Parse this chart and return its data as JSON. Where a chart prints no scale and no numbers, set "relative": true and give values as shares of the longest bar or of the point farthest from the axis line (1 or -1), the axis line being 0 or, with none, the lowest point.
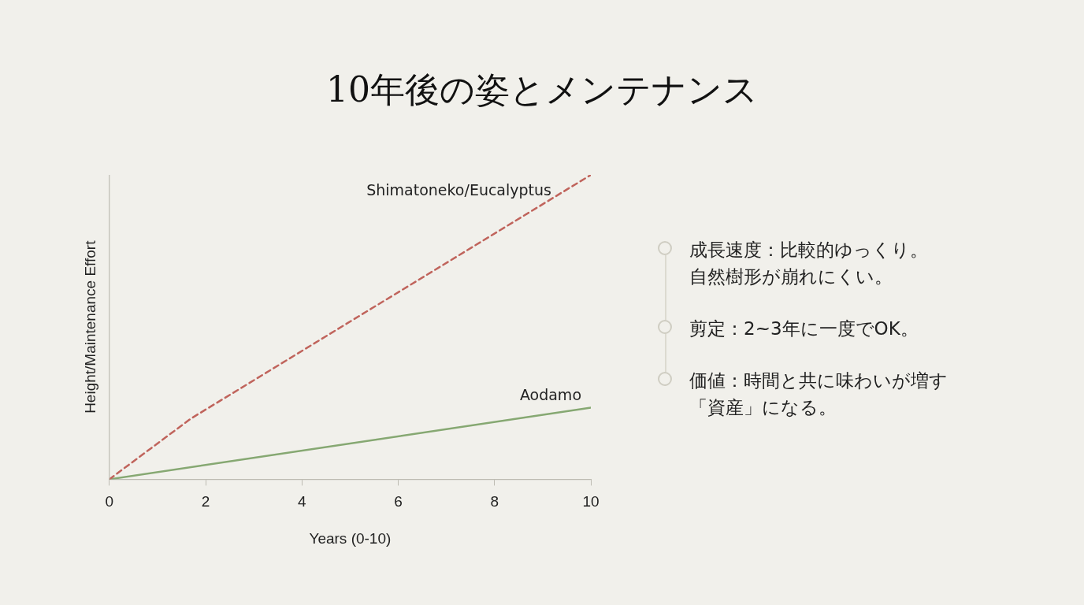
{
  "chart_data": {
    "type": "line",
    "title": "10年後の姿とメンテナンス",
    "xlabel": "Years (0-10)",
    "ylabel": "Height/Maintenance Effort",
    "relative": true,
    "xlim": [
      0,
      10
    ],
    "xticks": [
      0,
      2,
      4,
      6,
      8,
      10
    ],
    "grid": false,
    "legend": false,
    "marker": "none",
    "series": [
      {
        "name": "Shimatoneko/Eucalyptus",
        "color": "#c0645c",
        "line_style": "dashed",
        "x": [
          0,
          1.7,
          10
        ],
        "values": [
          0,
          0.2,
          1
        ]
      },
      {
        "name": "Aodamo",
        "color": "#86a872",
        "line_style": "solid",
        "x": [
          0,
          10
        ],
        "values": [
          0,
          0.235
        ]
      }
    ],
    "annotations": [
      "成長速度：比較的ゆっくり。自然樹形が崩れにくい。",
      "剪定：2~3年に一度でOK。",
      "価値：時間と共に味わいが増す「資産」になる。"
    ]
  }
}
